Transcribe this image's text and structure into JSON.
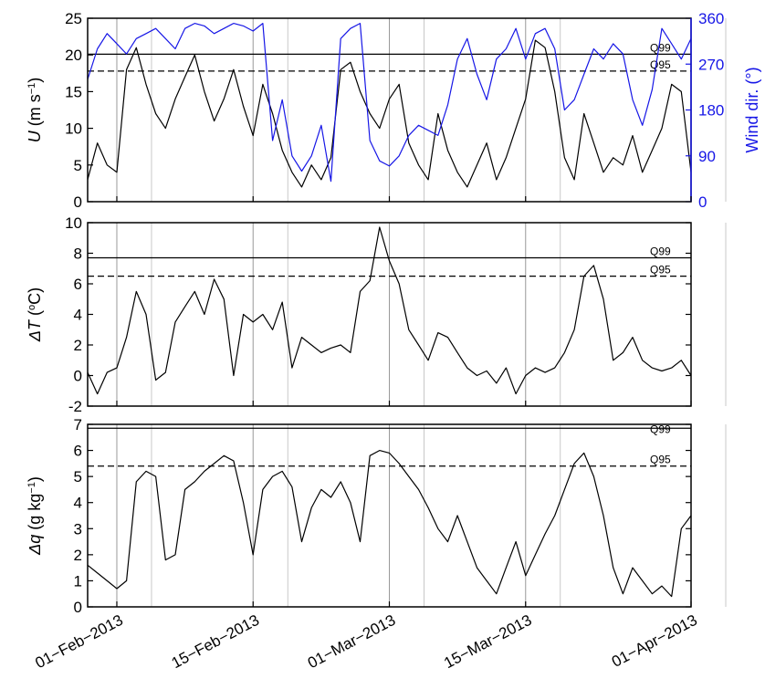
{
  "chart_data": [
    {
      "panel": "wind",
      "type": "line",
      "ylabel_sym": "U",
      "ylabel_unit_pre": " (m s",
      "ylabel_unit_sup": "−1",
      "ylabel_unit_post": ")",
      "y2label": "Wind dir. (°)",
      "ylim": [
        0,
        25
      ],
      "y2lim": [
        0,
        360
      ],
      "yticks": [
        0,
        5,
        10,
        15,
        20,
        25
      ],
      "y2ticks": [
        0,
        90,
        180,
        270,
        360
      ],
      "xlim": [
        "2013-01-29",
        "2013-04-01"
      ],
      "quantiles": [
        {
          "label": "Q99",
          "value": 20.1,
          "style": "solid"
        },
        {
          "label": "Q95",
          "value": 17.8,
          "style": "dashed"
        }
      ],
      "series": [
        {
          "axis": "left",
          "color": "#000000",
          "x": [
            "2013-01-29",
            "2013-01-30",
            "2013-01-31",
            "2013-02-01",
            "2013-02-02",
            "2013-02-03",
            "2013-02-04",
            "2013-02-05",
            "2013-02-06",
            "2013-02-07",
            "2013-02-08",
            "2013-02-09",
            "2013-02-10",
            "2013-02-11",
            "2013-02-12",
            "2013-02-13",
            "2013-02-14",
            "2013-02-15",
            "2013-02-16",
            "2013-02-17",
            "2013-02-18",
            "2013-02-19",
            "2013-02-20",
            "2013-02-21",
            "2013-02-22",
            "2013-02-23",
            "2013-02-24",
            "2013-02-25",
            "2013-02-26",
            "2013-02-27",
            "2013-02-28",
            "2013-03-01",
            "2013-03-02",
            "2013-03-03",
            "2013-03-04",
            "2013-03-05",
            "2013-03-06",
            "2013-03-07",
            "2013-03-08",
            "2013-03-09",
            "2013-03-10",
            "2013-03-11",
            "2013-03-12",
            "2013-03-13",
            "2013-03-14",
            "2013-03-15",
            "2013-03-16",
            "2013-03-17",
            "2013-03-18",
            "2013-03-19",
            "2013-03-20",
            "2013-03-21",
            "2013-03-22",
            "2013-03-23",
            "2013-03-24",
            "2013-03-25",
            "2013-03-26",
            "2013-03-27",
            "2013-03-28",
            "2013-03-29",
            "2013-03-30",
            "2013-03-31",
            "2013-04-01"
          ],
          "y": [
            3,
            8,
            5,
            4,
            18,
            21,
            16,
            12,
            10,
            14,
            17,
            20,
            15,
            11,
            14,
            18,
            13,
            9,
            16,
            12,
            7,
            4,
            2,
            5,
            3,
            6,
            18,
            19,
            15,
            12,
            10,
            14,
            16,
            8,
            5,
            3,
            12,
            7,
            4,
            2,
            5,
            8,
            3,
            6,
            10,
            14,
            22,
            21,
            15,
            6,
            3,
            12,
            8,
            4,
            6,
            5,
            9,
            4,
            7,
            10,
            16,
            15,
            4
          ]
        },
        {
          "axis": "right",
          "color": "#1616e6",
          "x": [
            "2013-01-29",
            "2013-01-30",
            "2013-01-31",
            "2013-02-01",
            "2013-02-02",
            "2013-02-03",
            "2013-02-04",
            "2013-02-05",
            "2013-02-06",
            "2013-02-07",
            "2013-02-08",
            "2013-02-09",
            "2013-02-10",
            "2013-02-11",
            "2013-02-12",
            "2013-02-13",
            "2013-02-14",
            "2013-02-15",
            "2013-02-16",
            "2013-02-17",
            "2013-02-18",
            "2013-02-19",
            "2013-02-20",
            "2013-02-21",
            "2013-02-22",
            "2013-02-23",
            "2013-02-24",
            "2013-02-25",
            "2013-02-26",
            "2013-02-27",
            "2013-02-28",
            "2013-03-01",
            "2013-03-02",
            "2013-03-03",
            "2013-03-04",
            "2013-03-05",
            "2013-03-06",
            "2013-03-07",
            "2013-03-08",
            "2013-03-09",
            "2013-03-10",
            "2013-03-11",
            "2013-03-12",
            "2013-03-13",
            "2013-03-14",
            "2013-03-15",
            "2013-03-16",
            "2013-03-17",
            "2013-03-18",
            "2013-03-19",
            "2013-03-20",
            "2013-03-21",
            "2013-03-22",
            "2013-03-23",
            "2013-03-24",
            "2013-03-25",
            "2013-03-26",
            "2013-03-27",
            "2013-03-28",
            "2013-03-29",
            "2013-03-30",
            "2013-03-31",
            "2013-04-01"
          ],
          "y": [
            240,
            300,
            330,
            310,
            290,
            320,
            330,
            340,
            320,
            300,
            340,
            350,
            345,
            330,
            340,
            350,
            345,
            335,
            350,
            120,
            200,
            90,
            60,
            90,
            150,
            40,
            320,
            340,
            350,
            120,
            80,
            70,
            90,
            130,
            150,
            140,
            130,
            190,
            280,
            320,
            250,
            200,
            280,
            300,
            340,
            280,
            330,
            340,
            300,
            180,
            200,
            250,
            300,
            280,
            310,
            290,
            200,
            150,
            220,
            340,
            310,
            280,
            320
          ]
        }
      ]
    },
    {
      "panel": "temperature",
      "type": "line",
      "ylabel_sym": "ΔT",
      "ylabel_unit_pre": " (",
      "ylabel_unit_sup": "o",
      "ylabel_unit_post": "C)",
      "ylim": [
        -2,
        10
      ],
      "yticks": [
        -2,
        0,
        2,
        4,
        6,
        8,
        10
      ],
      "xlim": [
        "2013-01-29",
        "2013-04-01"
      ],
      "quantiles": [
        {
          "label": "Q99",
          "value": 7.7,
          "style": "solid"
        },
        {
          "label": "Q95",
          "value": 6.5,
          "style": "dashed"
        }
      ],
      "series": [
        {
          "color": "#000000",
          "x": [
            "2013-01-29",
            "2013-01-30",
            "2013-01-31",
            "2013-02-01",
            "2013-02-02",
            "2013-02-03",
            "2013-02-04",
            "2013-02-05",
            "2013-02-06",
            "2013-02-07",
            "2013-02-08",
            "2013-02-09",
            "2013-02-10",
            "2013-02-11",
            "2013-02-12",
            "2013-02-13",
            "2013-02-14",
            "2013-02-15",
            "2013-02-16",
            "2013-02-17",
            "2013-02-18",
            "2013-02-19",
            "2013-02-20",
            "2013-02-21",
            "2013-02-22",
            "2013-02-23",
            "2013-02-24",
            "2013-02-25",
            "2013-02-26",
            "2013-02-27",
            "2013-02-28",
            "2013-03-01",
            "2013-03-02",
            "2013-03-03",
            "2013-03-04",
            "2013-03-05",
            "2013-03-06",
            "2013-03-07",
            "2013-03-08",
            "2013-03-09",
            "2013-03-10",
            "2013-03-11",
            "2013-03-12",
            "2013-03-13",
            "2013-03-14",
            "2013-03-15",
            "2013-03-16",
            "2013-03-17",
            "2013-03-18",
            "2013-03-19",
            "2013-03-20",
            "2013-03-21",
            "2013-03-22",
            "2013-03-23",
            "2013-03-24",
            "2013-03-25",
            "2013-03-26",
            "2013-03-27",
            "2013-03-28",
            "2013-03-29",
            "2013-03-30",
            "2013-03-31",
            "2013-04-01"
          ],
          "y": [
            0.2,
            -1.2,
            0.2,
            0.5,
            2.5,
            5.5,
            4.0,
            -0.3,
            0.2,
            3.5,
            4.5,
            5.5,
            4.0,
            6.3,
            5.0,
            0.0,
            4.0,
            3.5,
            4.0,
            3.0,
            4.8,
            0.5,
            2.5,
            2.0,
            1.5,
            1.8,
            2.0,
            1.5,
            5.5,
            6.2,
            9.7,
            7.5,
            6.0,
            3.0,
            2.0,
            1.0,
            2.8,
            2.5,
            1.5,
            0.5,
            0.0,
            0.3,
            -0.5,
            0.5,
            -1.2,
            0.0,
            0.5,
            0.2,
            0.5,
            1.5,
            3.0,
            6.5,
            7.2,
            5.0,
            1.0,
            1.5,
            2.5,
            1.0,
            0.5,
            0.3,
            0.5,
            1.0,
            0.0
          ]
        }
      ]
    },
    {
      "panel": "humidity",
      "type": "line",
      "ylabel_sym": "Δq",
      "ylabel_unit_pre": " (g kg",
      "ylabel_unit_sup": "−1",
      "ylabel_unit_post": ")",
      "ylim": [
        0,
        7
      ],
      "yticks": [
        0,
        1,
        2,
        3,
        4,
        5,
        6,
        7
      ],
      "xlim": [
        "2013-01-29",
        "2013-04-01"
      ],
      "xticks": [
        "01−Feb−2013",
        "15−Feb−2013",
        "01−Mar−2013",
        "15−Mar−2013",
        "01−Apr−2013"
      ],
      "quantiles": [
        {
          "label": "Q99",
          "value": 6.85,
          "style": "solid"
        },
        {
          "label": "Q95",
          "value": 5.4,
          "style": "dashed"
        }
      ],
      "series": [
        {
          "color": "#000000",
          "x": [
            "2013-01-29",
            "2013-01-30",
            "2013-01-31",
            "2013-02-01",
            "2013-02-02",
            "2013-02-03",
            "2013-02-04",
            "2013-02-05",
            "2013-02-06",
            "2013-02-07",
            "2013-02-08",
            "2013-02-09",
            "2013-02-10",
            "2013-02-11",
            "2013-02-12",
            "2013-02-13",
            "2013-02-14",
            "2013-02-15",
            "2013-02-16",
            "2013-02-17",
            "2013-02-18",
            "2013-02-19",
            "2013-02-20",
            "2013-02-21",
            "2013-02-22",
            "2013-02-23",
            "2013-02-24",
            "2013-02-25",
            "2013-02-26",
            "2013-02-27",
            "2013-02-28",
            "2013-03-01",
            "2013-03-02",
            "2013-03-03",
            "2013-03-04",
            "2013-03-05",
            "2013-03-06",
            "2013-03-07",
            "2013-03-08",
            "2013-03-09",
            "2013-03-10",
            "2013-03-11",
            "2013-03-12",
            "2013-03-13",
            "2013-03-14",
            "2013-03-15",
            "2013-03-16",
            "2013-03-17",
            "2013-03-18",
            "2013-03-19",
            "2013-03-20",
            "2013-03-21",
            "2013-03-22",
            "2013-03-23",
            "2013-03-24",
            "2013-03-25",
            "2013-03-26",
            "2013-03-27",
            "2013-03-28",
            "2013-03-29",
            "2013-03-30",
            "2013-03-31",
            "2013-04-01"
          ],
          "y": [
            1.6,
            1.3,
            1.0,
            0.7,
            1.0,
            4.8,
            5.2,
            5.0,
            1.8,
            2.0,
            4.5,
            4.8,
            5.2,
            5.5,
            5.8,
            5.6,
            4.0,
            2.0,
            4.5,
            5.0,
            5.2,
            4.6,
            2.5,
            3.8,
            4.5,
            4.2,
            4.8,
            4.0,
            2.5,
            5.8,
            6.0,
            5.9,
            5.5,
            5.0,
            4.5,
            3.8,
            3.0,
            2.5,
            3.5,
            2.5,
            1.5,
            1.0,
            0.5,
            1.5,
            2.5,
            1.2,
            2.0,
            2.8,
            3.5,
            4.5,
            5.5,
            5.9,
            5.0,
            3.5,
            1.5,
            0.5,
            1.5,
            1.0,
            0.5,
            0.8,
            0.4,
            3.0,
            3.5
          ]
        }
      ]
    }
  ]
}
